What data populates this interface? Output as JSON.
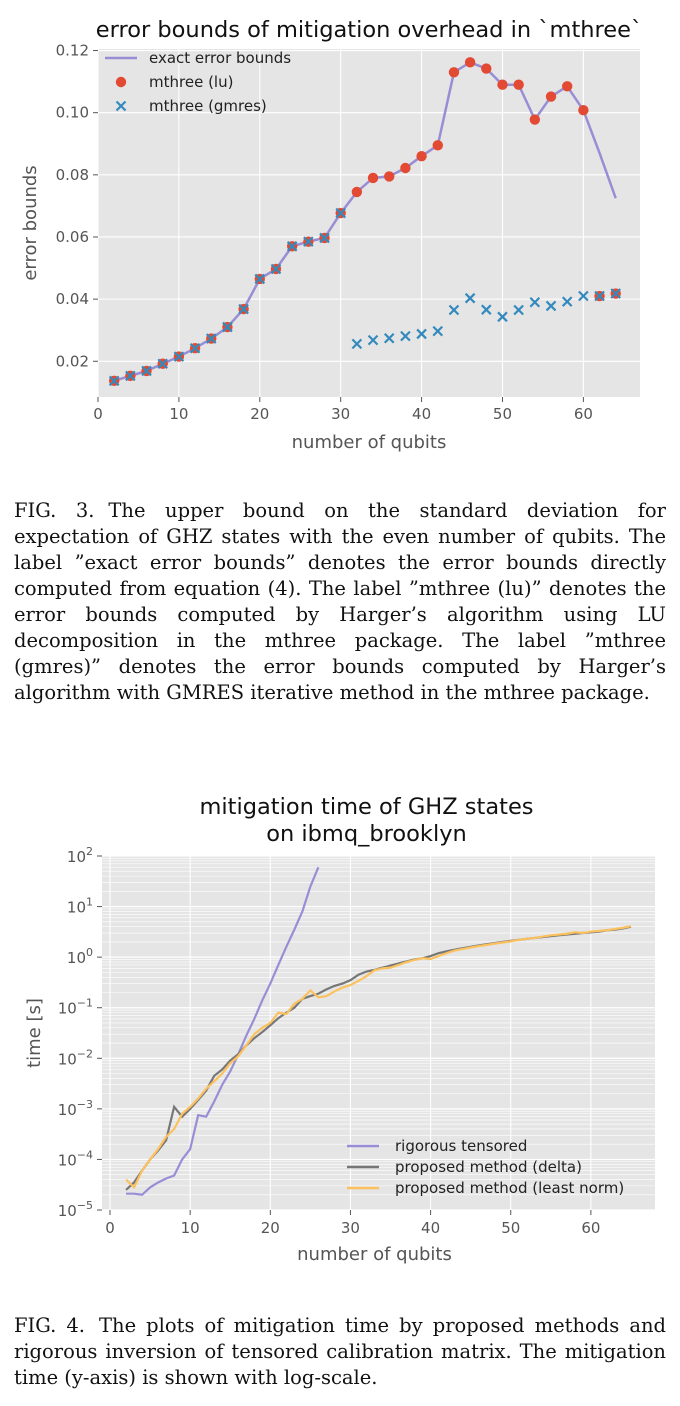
{
  "figure3": {
    "caption_label": "FIG. 3.",
    "caption_text": "The upper bound on the standard deviation for expectation of GHZ states with the even number of qubits. The label ”exact error bounds” denotes the error bounds directly computed from equation (4). The label ”mthree (lu)” denotes the error bounds computed by Harger’s algorithm using LU decomposition in the mthree package. The label ”mthree (gmres)” denotes the error bounds computed by Harger’s algorithm with GMRES iterative method in the mthree package."
  },
  "figure4": {
    "caption_label": "FIG. 4.",
    "caption_text": "The plots of mitigation time by proposed methods and rigorous inversion of tensored calibration matrix. The mitigation time (y-axis) is shown with log-scale."
  },
  "chart_data": [
    {
      "type": "line",
      "title": "error bounds of mitigation overhead in `mthree`",
      "xlabel": "number of qubits",
      "ylabel": "error bounds",
      "xlim": [
        0,
        67
      ],
      "ylim": [
        0.0085,
        0.1205
      ],
      "xticks": [
        0,
        10,
        20,
        30,
        40,
        50,
        60
      ],
      "yticks": [
        0.02,
        0.04,
        0.06,
        0.08,
        0.1,
        0.12
      ],
      "ytick_labels": [
        "0.02",
        "0.04",
        "0.06",
        "0.08",
        "0.10",
        "0.12"
      ],
      "grid": true,
      "legend": "top-left",
      "series": [
        {
          "name": "exact error bounds",
          "style": "line",
          "color": "#988ED5",
          "x": [
            2,
            4,
            6,
            8,
            10,
            12,
            14,
            16,
            18,
            20,
            22,
            24,
            26,
            28,
            30,
            32,
            34,
            36,
            38,
            40,
            42,
            44,
            46,
            48,
            50,
            52,
            54,
            56,
            58,
            60,
            62,
            64
          ],
          "values": [
            0.0137,
            0.0153,
            0.0169,
            0.0192,
            0.0215,
            0.0242,
            0.0273,
            0.031,
            0.0368,
            0.0465,
            0.0497,
            0.057,
            0.0585,
            0.0597,
            0.0677,
            0.0745,
            0.079,
            0.0795,
            0.0822,
            0.086,
            0.0895,
            0.113,
            0.1162,
            0.1142,
            0.109,
            0.109,
            0.0978,
            0.1052,
            0.1085,
            0.1008,
            0.087,
            0.0725
          ]
        },
        {
          "name": "mthree (lu)",
          "style": "marker-circle",
          "color": "#E24A33",
          "x": [
            2,
            4,
            6,
            8,
            10,
            12,
            14,
            16,
            18,
            20,
            22,
            24,
            26,
            28,
            30,
            32,
            34,
            36,
            38,
            40,
            42,
            44,
            46,
            48,
            50,
            52,
            54,
            56,
            58,
            60,
            62,
            64
          ],
          "values": [
            0.0137,
            0.0153,
            0.0169,
            0.0192,
            0.0215,
            0.0242,
            0.0273,
            0.031,
            0.0368,
            0.0465,
            0.0497,
            0.057,
            0.0585,
            0.0597,
            0.0677,
            0.0745,
            0.079,
            0.0795,
            0.0822,
            0.086,
            0.0895,
            0.113,
            0.1162,
            0.1142,
            0.109,
            0.109,
            0.0978,
            0.1052,
            0.1085,
            0.1008,
            0.041,
            0.0418
          ]
        },
        {
          "name": "mthree (gmres)",
          "style": "marker-x",
          "color": "#348ABD",
          "x": [
            2,
            4,
            6,
            8,
            10,
            12,
            14,
            16,
            18,
            20,
            22,
            24,
            26,
            28,
            30,
            32,
            34,
            36,
            38,
            40,
            42,
            44,
            46,
            48,
            50,
            52,
            54,
            56,
            58,
            60,
            62,
            64
          ],
          "values": [
            0.0137,
            0.0153,
            0.0169,
            0.0192,
            0.0215,
            0.0242,
            0.0273,
            0.031,
            0.0368,
            0.0465,
            0.0497,
            0.057,
            0.0585,
            0.0597,
            0.0677,
            0.0256,
            0.0268,
            0.0274,
            0.0281,
            0.0288,
            0.0297,
            0.0365,
            0.0403,
            0.0366,
            0.0343,
            0.0365,
            0.039,
            0.0378,
            0.0392,
            0.041,
            0.041,
            0.0418
          ]
        }
      ]
    },
    {
      "type": "line",
      "title": "mitigation time of GHZ states",
      "subtitle": "on ibmq_brooklyn",
      "xlabel": "number of qubits",
      "ylabel": "time [s]",
      "yscale": "log",
      "xlim": [
        -1,
        68
      ],
      "ylim": [
        1e-05,
        100
      ],
      "xticks": [
        0,
        10,
        20,
        30,
        40,
        50,
        60
      ],
      "yticks": [
        {
          "base": "10",
          "exp": "2"
        },
        {
          "base": "10",
          "exp": "1"
        },
        {
          "base": "10",
          "exp": "0"
        },
        {
          "base": "10",
          "exp": "−1"
        },
        {
          "base": "10",
          "exp": "−2"
        },
        {
          "base": "10",
          "exp": "−3"
        },
        {
          "base": "10",
          "exp": "−4"
        },
        {
          "base": "10",
          "exp": "−5"
        }
      ],
      "grid": true,
      "legend": "bottom-right",
      "series": [
        {
          "name": "rigorous tensored",
          "color": "#988ED5",
          "x": [
            2,
            3,
            4,
            5,
            6,
            7,
            8,
            9,
            10,
            11,
            12,
            13,
            14,
            15,
            16,
            17,
            18,
            19,
            20,
            21,
            22,
            23,
            24,
            25,
            26
          ],
          "values": [
            2.1e-05,
            2.1e-05,
            2e-05,
            2.8e-05,
            3.5e-05,
            4.2e-05,
            4.8e-05,
            0.0001,
            0.00016,
            0.00075,
            0.0007,
            0.0014,
            0.003,
            0.0055,
            0.012,
            0.028,
            0.06,
            0.14,
            0.3,
            0.7,
            1.6,
            3.5,
            8,
            25,
            60
          ]
        },
        {
          "name": "proposed method (delta)",
          "color": "#777777",
          "x": [
            2,
            3,
            4,
            5,
            6,
            7,
            8,
            9,
            10,
            11,
            12,
            13,
            14,
            15,
            16,
            17,
            18,
            19,
            20,
            21,
            22,
            23,
            24,
            25,
            26,
            27,
            28,
            29,
            30,
            31,
            32,
            33,
            34,
            35,
            36,
            37,
            38,
            39,
            40,
            41,
            42,
            43,
            44,
            45,
            46,
            47,
            48,
            49,
            50,
            51,
            52,
            53,
            54,
            55,
            56,
            57,
            58,
            59,
            60,
            61,
            62,
            63,
            64,
            65
          ],
          "values": [
            2.5e-05,
            3.5e-05,
            6e-05,
            0.0001,
            0.00015,
            0.00024,
            0.0011,
            0.0007,
            0.001,
            0.0015,
            0.0023,
            0.0045,
            0.006,
            0.009,
            0.012,
            0.018,
            0.025,
            0.033,
            0.045,
            0.062,
            0.08,
            0.1,
            0.15,
            0.17,
            0.19,
            0.23,
            0.27,
            0.3,
            0.35,
            0.45,
            0.52,
            0.56,
            0.62,
            0.68,
            0.75,
            0.82,
            0.9,
            0.95,
            1.05,
            1.2,
            1.3,
            1.4,
            1.5,
            1.6,
            1.7,
            1.8,
            1.9,
            2.0,
            2.1,
            2.2,
            2.3,
            2.4,
            2.5,
            2.6,
            2.7,
            2.8,
            2.9,
            3.0,
            3.1,
            3.2,
            3.4,
            3.5,
            3.7,
            4.0
          ]
        },
        {
          "name": "proposed method (least norm)",
          "color": "#FBC15E",
          "x": [
            2,
            3,
            4,
            5,
            6,
            7,
            8,
            9,
            10,
            11,
            12,
            13,
            14,
            15,
            16,
            17,
            18,
            19,
            20,
            21,
            22,
            23,
            24,
            25,
            26,
            27,
            28,
            29,
            30,
            31,
            32,
            33,
            34,
            35,
            36,
            37,
            38,
            39,
            40,
            41,
            42,
            43,
            44,
            45,
            46,
            47,
            48,
            49,
            50,
            51,
            52,
            53,
            54,
            55,
            56,
            57,
            58,
            59,
            60,
            61,
            62,
            63,
            64,
            65
          ],
          "values": [
            4e-05,
            2.8e-05,
            6e-05,
            0.0001,
            0.00016,
            0.00028,
            0.0004,
            0.0008,
            0.0011,
            0.0016,
            0.0025,
            0.0035,
            0.005,
            0.008,
            0.011,
            0.018,
            0.03,
            0.04,
            0.05,
            0.08,
            0.075,
            0.12,
            0.15,
            0.22,
            0.16,
            0.17,
            0.21,
            0.25,
            0.28,
            0.34,
            0.42,
            0.55,
            0.6,
            0.62,
            0.7,
            0.8,
            0.88,
            0.95,
            0.92,
            1.05,
            1.2,
            1.35,
            1.45,
            1.55,
            1.65,
            1.75,
            1.85,
            1.95,
            2.05,
            2.2,
            2.3,
            2.4,
            2.55,
            2.7,
            2.8,
            2.9,
            3.1,
            3.0,
            3.2,
            3.3,
            3.4,
            3.6,
            3.8,
            4.1
          ]
        }
      ]
    }
  ]
}
